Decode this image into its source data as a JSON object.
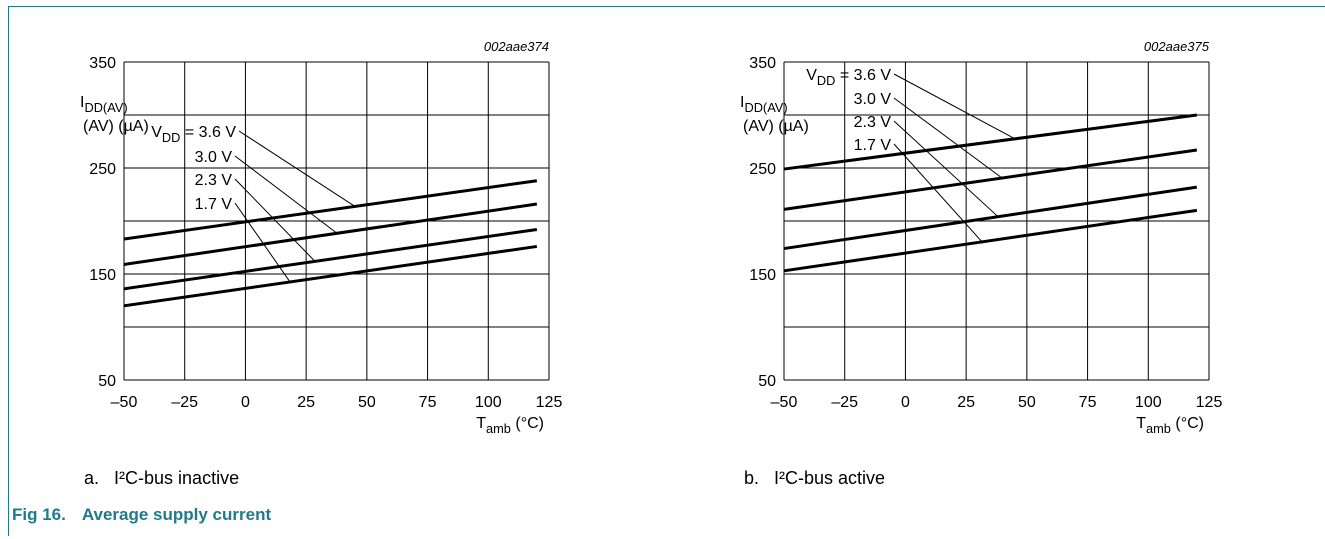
{
  "figure": {
    "number": "Fig 16.",
    "title": "Average supply current",
    "accent_color": "#1f7a8c"
  },
  "chart_data": [
    {
      "type": "line",
      "id_label": "002aae374",
      "caption_prefix": "a.",
      "caption_text": "I²C-bus inactive",
      "ylabel": "I_DD(AV) (µA)",
      "xlabel": "T_amb (°C)",
      "xlim": [
        -50,
        125
      ],
      "ylim": [
        50,
        350
      ],
      "x_ticks": [
        -50,
        -25,
        0,
        25,
        50,
        75,
        100,
        125
      ],
      "x_tick_labels": [
        "–50",
        "–25",
        "0",
        "25",
        "50",
        "75",
        "100",
        "125"
      ],
      "y_ticks": [
        50,
        150,
        250,
        350
      ],
      "y_tick_labels": [
        "50",
        "150",
        "250",
        "350"
      ],
      "grid": true,
      "series": [
        {
          "name": "V_DD = 3.6 V",
          "x": [
            -50,
            120
          ],
          "y": [
            183,
            238
          ]
        },
        {
          "name": "3.0 V",
          "x": [
            -50,
            120
          ],
          "y": [
            159,
            216
          ]
        },
        {
          "name": "2.3 V",
          "x": [
            -50,
            120
          ],
          "y": [
            136,
            192
          ]
        },
        {
          "name": "1.7 V",
          "x": [
            -50,
            120
          ],
          "y": [
            120,
            176
          ]
        }
      ]
    },
    {
      "type": "line",
      "id_label": "002aae375",
      "caption_prefix": "b.",
      "caption_text": "I²C-bus active",
      "ylabel": "I_DD(AV) (µA)",
      "xlabel": "T_amb (°C)",
      "xlim": [
        -50,
        125
      ],
      "ylim": [
        50,
        350
      ],
      "x_ticks": [
        -50,
        -25,
        0,
        25,
        50,
        75,
        100,
        125
      ],
      "x_tick_labels": [
        "–50",
        "–25",
        "0",
        "25",
        "50",
        "75",
        "100",
        "125"
      ],
      "y_ticks": [
        50,
        150,
        250,
        350
      ],
      "y_tick_labels": [
        "50",
        "150",
        "250",
        "350"
      ],
      "grid": true,
      "series": [
        {
          "name": "V_DD = 3.6 V",
          "x": [
            -50,
            120
          ],
          "y": [
            249,
            300
          ]
        },
        {
          "name": "3.0 V",
          "x": [
            -50,
            120
          ],
          "y": [
            211,
            267
          ]
        },
        {
          "name": "2.3 V",
          "x": [
            -50,
            120
          ],
          "y": [
            174,
            232
          ]
        },
        {
          "name": "1.7 V",
          "x": [
            -50,
            120
          ],
          "y": [
            153,
            210
          ]
        }
      ]
    }
  ]
}
